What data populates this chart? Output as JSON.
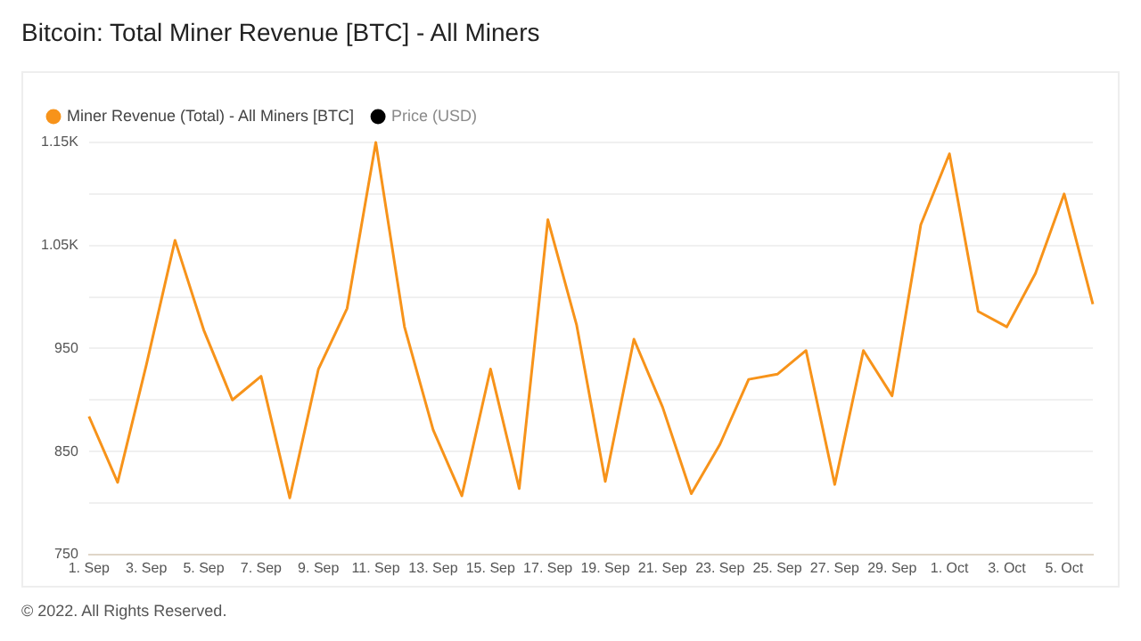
{
  "chart_data": {
    "type": "line",
    "title": "Bitcoin: Total Miner Revenue [BTC] - All Miners",
    "categories": [
      "1. Sep",
      null,
      "3. Sep",
      null,
      "5. Sep",
      null,
      "7. Sep",
      null,
      "9. Sep",
      null,
      "11. Sep",
      null,
      "13. Sep",
      null,
      "15. Sep",
      null,
      "17. Sep",
      null,
      "19. Sep",
      null,
      "21. Sep",
      null,
      "23. Sep",
      null,
      "25. Sep",
      null,
      "27. Sep",
      null,
      "29. Sep",
      null,
      "1. Oct",
      null,
      "3. Oct",
      null,
      "5. Oct",
      null
    ],
    "series": [
      {
        "name": "Miner Revenue (Total) - All Miners [BTC]",
        "color": "#f7931a",
        "values": [
          884,
          820,
          934,
          1055,
          968,
          900,
          923,
          805,
          930,
          989,
          1150,
          971,
          871,
          807,
          930,
          814,
          1075,
          973,
          821,
          959,
          893,
          809,
          857,
          920,
          925,
          948,
          818,
          948,
          904,
          1070,
          1139,
          986,
          971,
          1023,
          1100,
          993
        ]
      },
      {
        "name": "Price (USD)",
        "color": "#000000",
        "values": [
          null,
          null,
          null,
          null,
          null,
          null,
          null,
          null,
          null,
          null,
          null,
          null,
          null,
          null,
          null,
          null,
          null,
          null,
          null,
          null,
          null,
          null,
          null,
          null,
          null,
          null,
          null,
          null,
          null,
          null,
          null,
          null,
          null,
          null,
          null,
          null
        ]
      }
    ],
    "ylim": [
      750,
      1150
    ],
    "yticks": [
      750,
      {
        "value": 800,
        "label": null
      },
      850,
      {
        "value": 900,
        "label": null
      },
      950,
      {
        "value": 1000,
        "label": null
      },
      {
        "value": 1050,
        "label": "1.05K"
      },
      {
        "value": 1100,
        "label": null
      },
      {
        "value": 1150,
        "label": "1.15K"
      }
    ],
    "grid": "y",
    "legend": "top left",
    "marker": "none",
    "line_style": "solid",
    "annotations": [
      "© 2022. All Rights Reserved."
    ]
  }
}
